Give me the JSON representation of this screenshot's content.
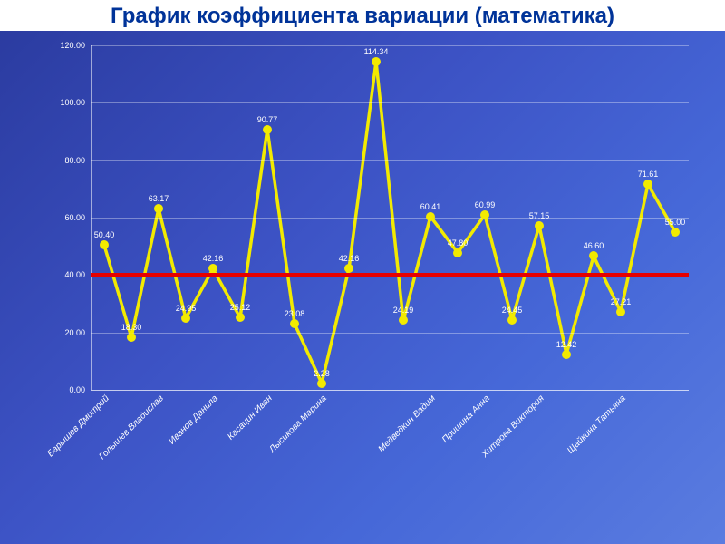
{
  "title": "График коэффициента вариации (математика)",
  "chart": {
    "type": "line",
    "ylim": [
      0,
      120
    ],
    "ytick_step": 20,
    "y_tick_decimals": 2,
    "y_tick_fontsize": 9,
    "x_tick_fontsize": 10,
    "title_fontsize": 24,
    "value_label_fontsize": 9,
    "line_color": "#f2ea00",
    "line_width": 3.5,
    "marker_color": "#f2ea00",
    "marker_size": 10,
    "threshold_value": 40,
    "threshold_color": "#e60000",
    "threshold_width": 4,
    "grid_color": "rgba(255,255,255,0.35)",
    "axis_color": "rgba(255,255,255,0.55)",
    "background_gradient": [
      "#2a3a9e",
      "#3c52c4",
      "#4668d8",
      "#5a7ce0"
    ],
    "title_color": "#003399",
    "title_background": "#ffffff",
    "label_text_color": "#ffffff",
    "values": [
      50.4,
      18.3,
      63.17,
      24.95,
      42.16,
      25.12,
      90.77,
      23.08,
      2.28,
      42.16,
      114.34,
      24.19,
      60.41,
      47.8,
      60.99,
      24.45,
      57.15,
      12.42,
      46.6,
      27.21,
      71.61,
      55.0
    ],
    "value_labels_visible": [
      true,
      true,
      true,
      true,
      true,
      true,
      true,
      true,
      true,
      true,
      true,
      true,
      true,
      true,
      true,
      true,
      true,
      true,
      true,
      true,
      true,
      true
    ],
    "categories": [
      "Барышев Дмитрий",
      "",
      "Голышев Владислав",
      "",
      "Иванов Данила",
      "",
      "Касацин Иван",
      "",
      "Лысикова Марина",
      "",
      "",
      "",
      "Медведкин Вадим",
      "",
      "Пришина Анна",
      "",
      "Хитрова Виктория",
      "",
      "",
      "Щайкина Татьяна",
      "",
      ""
    ],
    "x_label_rotation_deg": -45
  }
}
